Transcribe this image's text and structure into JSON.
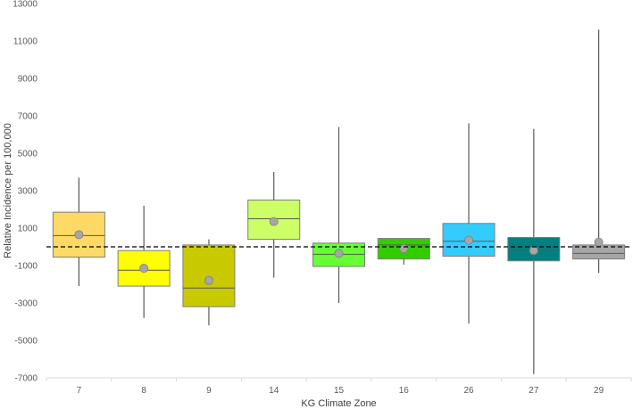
{
  "chart_data": {
    "type": "box",
    "xlabel": "KG Climate Zone",
    "ylabel": "Relative Incidence per 100,000",
    "ylim": [
      -7000,
      13000
    ],
    "yticks": [
      -7000,
      -5000,
      -3000,
      -1000,
      1000,
      3000,
      5000,
      7000,
      9000,
      11000,
      13000
    ],
    "ytick_labels": [
      "-7000",
      "-5000",
      "-3000",
      "-1000",
      "1000",
      "3000",
      "5000",
      "7000",
      "9000",
      "11000",
      "13000"
    ],
    "reference_line": 0,
    "grid": false,
    "categories": [
      "7",
      "8",
      "9",
      "14",
      "15",
      "16",
      "26",
      "27",
      "29"
    ],
    "boxes": [
      {
        "category": "7",
        "color": "#FFD966",
        "min": -2100,
        "q1": -550,
        "median": 600,
        "q3": 1850,
        "max": 3700,
        "mean": 650
      },
      {
        "category": "8",
        "color": "#FFFF00",
        "min": -3800,
        "q1": -2100,
        "median": -1250,
        "q3": -200,
        "max": 2200,
        "mean": -1150
      },
      {
        "category": "9",
        "color": "#C9C900",
        "min": -4200,
        "q1": -3200,
        "median": -2200,
        "q3": 100,
        "max": 400,
        "mean": -1800
      },
      {
        "category": "14",
        "color": "#CCFF66",
        "min": -1650,
        "q1": 400,
        "median": 1500,
        "q3": 2500,
        "max": 4000,
        "mean": 1350
      },
      {
        "category": "15",
        "color": "#66FF33",
        "min": -3000,
        "q1": -1050,
        "median": -400,
        "q3": 200,
        "max": 6400,
        "mean": -350
      },
      {
        "category": "16",
        "color": "#33CC00",
        "min": -950,
        "q1": -650,
        "median": 100,
        "q3": 450,
        "max": 450,
        "mean": -100
      },
      {
        "category": "26",
        "color": "#33CCFF",
        "min": -4100,
        "q1": -500,
        "median": 300,
        "q3": 1250,
        "max": 6600,
        "mean": 350
      },
      {
        "category": "27",
        "color": "#008080",
        "min": -6800,
        "q1": -750,
        "median": -150,
        "q3": 500,
        "max": 6300,
        "mean": -200
      },
      {
        "category": "29",
        "color": "#A6A6A6",
        "min": -1400,
        "q1": -650,
        "median": -350,
        "q3": 100,
        "max": 11600,
        "mean": 250
      }
    ]
  }
}
